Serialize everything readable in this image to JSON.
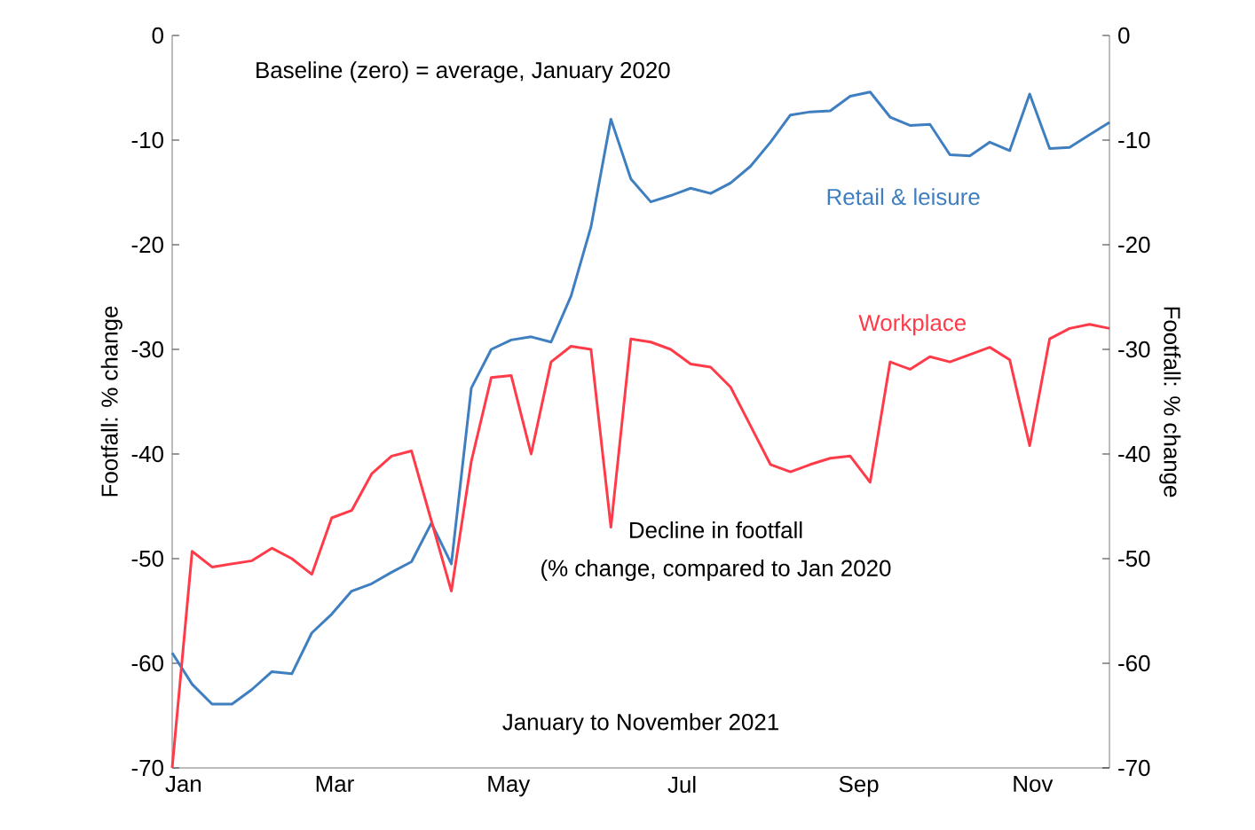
{
  "chart_data": {
    "type": "line",
    "ylabel": "Footfall:  % change",
    "y2label": "Footfall:  % change",
    "annotations": [
      "Baseline (zero) = average, January 2020",
      "Decline in footfall",
      "(% change, compared to Jan 2020",
      "January to November 2021"
    ],
    "x": [
      "2021-01-03",
      "2021-01-10",
      "2021-01-17",
      "2021-01-24",
      "2021-01-31",
      "2021-02-07",
      "2021-02-14",
      "2021-02-21",
      "2021-02-28",
      "2021-03-07",
      "2021-03-14",
      "2021-03-21",
      "2021-03-28",
      "2021-04-04",
      "2021-04-11",
      "2021-04-18",
      "2021-04-25",
      "2021-05-02",
      "2021-05-09",
      "2021-05-16",
      "2021-05-23",
      "2021-05-30",
      "2021-06-06",
      "2021-06-13",
      "2021-06-20",
      "2021-06-27",
      "2021-07-04",
      "2021-07-11",
      "2021-07-18",
      "2021-07-25",
      "2021-08-01",
      "2021-08-08",
      "2021-08-15",
      "2021-08-22",
      "2021-08-29",
      "2021-09-05",
      "2021-09-12",
      "2021-09-19",
      "2021-09-26",
      "2021-10-03",
      "2021-10-10",
      "2021-10-17",
      "2021-10-24",
      "2021-10-31",
      "2021-11-07",
      "2021-11-14",
      "2021-11-21",
      "2021-11-28"
    ],
    "xlim": [
      "2021-01-03",
      "2021-11-28"
    ],
    "xticks": [
      {
        "value": "2021-01-07",
        "label": "Jan"
      },
      {
        "value": "2021-03-01",
        "label": "Mar"
      },
      {
        "value": "2021-05-01",
        "label": "May"
      },
      {
        "value": "2021-07-01",
        "label": "Jul"
      },
      {
        "value": "2021-09-01",
        "label": "Sep"
      },
      {
        "value": "2021-11-01",
        "label": "Nov"
      }
    ],
    "ylim": [
      -70,
      0
    ],
    "yticks": [
      -70,
      -60,
      -50,
      -40,
      -30,
      -20,
      -10,
      0
    ],
    "y2lim": [
      -70,
      0
    ],
    "y2ticks": [
      -70,
      -60,
      -50,
      -40,
      -30,
      -20,
      -10,
      0
    ],
    "series": [
      {
        "name": "Retail & leisure",
        "color": "#3f7fc0",
        "values": [
          -59,
          -62,
          -63.9,
          -63.9,
          -62.5,
          -60.8,
          -61,
          -57.1,
          -55.3,
          -53.1,
          -52.4,
          -51.3,
          -50.3,
          -46.6,
          -50.5,
          -33.7,
          -30,
          -29.1,
          -28.8,
          -29.3,
          -24.9,
          -18.3,
          -8,
          -13.7,
          -15.9,
          -15.3,
          -14.6,
          -15.1,
          -14.1,
          -12.5,
          -10.2,
          -7.6,
          -7.3,
          -7.2,
          -5.8,
          -5.4,
          -7.8,
          -8.6,
          -8.5,
          -11.4,
          -11.5,
          -10.2,
          -11,
          -5.6,
          -10.8,
          -10.7,
          -9.5,
          -8.3
        ]
      },
      {
        "name": "Workplace",
        "color": "#ff3b4a",
        "values": [
          -70,
          -49.3,
          -50.8,
          -50.5,
          -50.2,
          -49,
          -50,
          -51.5,
          -46.1,
          -45.4,
          -41.9,
          -40.2,
          -39.7,
          -46.4,
          -53.1,
          -40.7,
          -32.7,
          -32.5,
          -40,
          -31.2,
          -29.7,
          -30,
          -47,
          -29,
          -29.3,
          -30,
          -31.4,
          -31.7,
          -33.6,
          -37.3,
          -41,
          -41.7,
          -41,
          -40.4,
          -40.2,
          -42.7,
          -31.2,
          -31.9,
          -30.7,
          -31.2,
          -30.5,
          -29.8,
          -31,
          -39.2,
          -29,
          -28,
          -27.6,
          -28
        ]
      }
    ]
  }
}
